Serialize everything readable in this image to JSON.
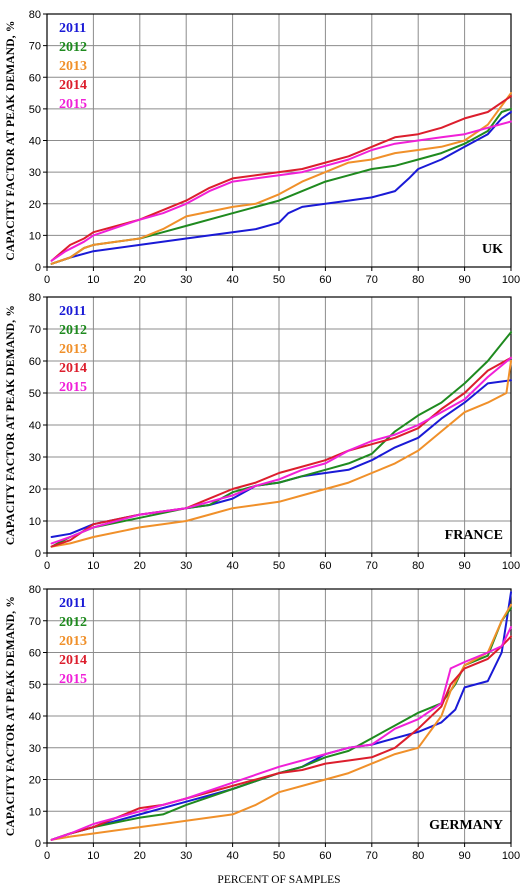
{
  "colors": {
    "2011": "#1a1ad6",
    "2012": "#1f8a1f",
    "2013": "#f0902a",
    "2014": "#dc1e2d",
    "2015": "#f020d8",
    "grid": "#8c8c8c",
    "axis": "#000000"
  },
  "ylabel": "CAPACITY FACTOR AT PEAK DEMAND, %",
  "xlabel": "PERCENT OF SAMPLES",
  "chart_data": [
    {
      "type": "line",
      "country": "UK",
      "xlim": [
        0,
        100
      ],
      "ylim": [
        0,
        80
      ],
      "xticks": [
        0,
        10,
        20,
        30,
        40,
        50,
        60,
        70,
        80,
        90,
        100
      ],
      "yticks": [
        0,
        10,
        20,
        30,
        40,
        50,
        60,
        70,
        80
      ],
      "grid": true,
      "legend_position": "top-left",
      "series": [
        {
          "name": "2011",
          "color_key": "2011",
          "x": [
            1,
            5,
            10,
            20,
            30,
            40,
            45,
            50,
            52,
            55,
            60,
            65,
            70,
            75,
            78,
            80,
            85,
            90,
            95,
            98,
            100
          ],
          "y": [
            1,
            3,
            5,
            7,
            9,
            11,
            12,
            14,
            17,
            19,
            20,
            21,
            22,
            24,
            28,
            31,
            34,
            38,
            42,
            47,
            49
          ]
        },
        {
          "name": "2012",
          "color_key": "2012",
          "x": [
            1,
            5,
            8,
            10,
            20,
            25,
            30,
            40,
            45,
            50,
            55,
            60,
            65,
            70,
            75,
            80,
            85,
            90,
            95,
            98,
            100
          ],
          "y": [
            1,
            3,
            6,
            7,
            9,
            11,
            13,
            17,
            19,
            21,
            24,
            27,
            29,
            31,
            32,
            34,
            36,
            39,
            43,
            49,
            50
          ]
        },
        {
          "name": "2013",
          "color_key": "2013",
          "x": [
            1,
            5,
            8,
            10,
            20,
            25,
            30,
            40,
            45,
            50,
            55,
            60,
            65,
            70,
            75,
            80,
            85,
            90,
            95,
            100
          ],
          "y": [
            1,
            3,
            6,
            7,
            9,
            12,
            16,
            19,
            20,
            23,
            27,
            30,
            33,
            34,
            36,
            37,
            38,
            40,
            45,
            55
          ]
        },
        {
          "name": "2014",
          "color_key": "2014",
          "x": [
            1,
            5,
            8,
            10,
            20,
            25,
            30,
            35,
            40,
            45,
            50,
            55,
            60,
            65,
            70,
            75,
            80,
            85,
            90,
            95,
            100
          ],
          "y": [
            2,
            7,
            9,
            11,
            15,
            18,
            21,
            25,
            28,
            29,
            30,
            31,
            33,
            35,
            38,
            41,
            42,
            44,
            47,
            49,
            54
          ]
        },
        {
          "name": "2015",
          "color_key": "2015",
          "x": [
            1,
            4,
            8,
            10,
            20,
            25,
            30,
            35,
            40,
            45,
            50,
            55,
            60,
            65,
            70,
            75,
            80,
            85,
            90,
            95,
            100
          ],
          "y": [
            2,
            5,
            8,
            10,
            15,
            17,
            20,
            24,
            27,
            28,
            29,
            30,
            32,
            34,
            37,
            39,
            40,
            41,
            42,
            44,
            46
          ]
        }
      ]
    },
    {
      "type": "line",
      "country": "FRANCE",
      "xlim": [
        0,
        100
      ],
      "ylim": [
        0,
        80
      ],
      "xticks": [
        0,
        10,
        20,
        30,
        40,
        50,
        60,
        70,
        80,
        90,
        100
      ],
      "yticks": [
        0,
        10,
        20,
        30,
        40,
        50,
        60,
        70,
        80
      ],
      "grid": true,
      "legend_position": "top-left",
      "series": [
        {
          "name": "2011",
          "color_key": "2011",
          "x": [
            1,
            5,
            10,
            20,
            30,
            35,
            40,
            45,
            50,
            55,
            60,
            65,
            70,
            75,
            80,
            85,
            90,
            95,
            100
          ],
          "y": [
            5,
            6,
            9,
            12,
            14,
            15,
            17,
            21,
            22,
            24,
            25,
            26,
            29,
            33,
            36,
            42,
            47,
            53,
            54
          ]
        },
        {
          "name": "2012",
          "color_key": "2012",
          "x": [
            1,
            5,
            10,
            20,
            30,
            35,
            40,
            45,
            50,
            55,
            60,
            65,
            70,
            75,
            80,
            85,
            90,
            95,
            100
          ],
          "y": [
            2,
            5,
            8,
            11,
            14,
            15,
            19,
            21,
            22,
            24,
            26,
            28,
            31,
            38,
            43,
            47,
            53,
            60,
            69
          ]
        },
        {
          "name": "2013",
          "color_key": "2013",
          "x": [
            1,
            5,
            10,
            20,
            30,
            35,
            40,
            45,
            50,
            55,
            60,
            65,
            70,
            75,
            80,
            85,
            90,
            95,
            99,
            100
          ],
          "y": [
            2,
            3,
            5,
            8,
            10,
            12,
            14,
            15,
            16,
            18,
            20,
            22,
            25,
            28,
            32,
            38,
            44,
            47,
            50,
            60
          ]
        },
        {
          "name": "2014",
          "color_key": "2014",
          "x": [
            1,
            5,
            10,
            20,
            30,
            35,
            40,
            45,
            50,
            55,
            60,
            65,
            70,
            75,
            80,
            85,
            90,
            95,
            100
          ],
          "y": [
            2,
            4,
            9,
            12,
            14,
            17,
            20,
            22,
            25,
            27,
            29,
            32,
            34,
            36,
            39,
            45,
            50,
            57,
            61
          ]
        },
        {
          "name": "2015",
          "color_key": "2015",
          "x": [
            1,
            5,
            10,
            20,
            30,
            35,
            40,
            45,
            50,
            55,
            60,
            65,
            70,
            75,
            80,
            85,
            90,
            95,
            100
          ],
          "y": [
            3,
            5,
            8,
            12,
            14,
            16,
            18,
            21,
            23,
            26,
            28,
            32,
            35,
            37,
            40,
            44,
            48,
            55,
            61
          ]
        }
      ]
    },
    {
      "type": "line",
      "country": "GERMANY",
      "xlim": [
        0,
        100
      ],
      "ylim": [
        0,
        80
      ],
      "xticks": [
        0,
        10,
        20,
        30,
        40,
        50,
        60,
        70,
        80,
        90,
        100
      ],
      "yticks": [
        0,
        10,
        20,
        30,
        40,
        50,
        60,
        70,
        80
      ],
      "grid": true,
      "legend_position": "top-left",
      "series": [
        {
          "name": "2011",
          "color_key": "2011",
          "x": [
            1,
            5,
            10,
            20,
            30,
            40,
            50,
            55,
            60,
            65,
            70,
            75,
            80,
            85,
            88,
            90,
            95,
            98,
            100
          ],
          "y": [
            1,
            3,
            5,
            9,
            13,
            17,
            22,
            24,
            28,
            30,
            31,
            33,
            35,
            38,
            42,
            49,
            51,
            60,
            79
          ]
        },
        {
          "name": "2012",
          "color_key": "2012",
          "x": [
            1,
            5,
            10,
            20,
            25,
            30,
            40,
            50,
            55,
            60,
            65,
            70,
            75,
            80,
            85,
            88,
            90,
            95,
            98,
            100
          ],
          "y": [
            1,
            3,
            5,
            8,
            9,
            12,
            17,
            22,
            24,
            27,
            29,
            33,
            37,
            41,
            44,
            50,
            56,
            59,
            70,
            74
          ]
        },
        {
          "name": "2013",
          "color_key": "2013",
          "x": [
            1,
            5,
            10,
            20,
            25,
            30,
            40,
            45,
            50,
            55,
            60,
            65,
            70,
            75,
            80,
            85,
            87,
            90,
            95,
            98,
            100
          ],
          "y": [
            1,
            2,
            3,
            5,
            6,
            7,
            9,
            12,
            16,
            18,
            20,
            22,
            25,
            28,
            30,
            40,
            48,
            56,
            60,
            70,
            75
          ]
        },
        {
          "name": "2014",
          "color_key": "2014",
          "x": [
            1,
            5,
            10,
            20,
            25,
            30,
            40,
            50,
            55,
            60,
            65,
            70,
            75,
            80,
            85,
            87,
            90,
            95,
            98,
            100
          ],
          "y": [
            1,
            3,
            5,
            11,
            12,
            14,
            18,
            22,
            23,
            25,
            26,
            27,
            30,
            36,
            43,
            50,
            55,
            58,
            62,
            65
          ]
        },
        {
          "name": "2015",
          "color_key": "2015",
          "x": [
            1,
            5,
            10,
            20,
            25,
            30,
            40,
            50,
            55,
            60,
            65,
            70,
            75,
            80,
            85,
            87,
            90,
            95,
            98,
            100
          ],
          "y": [
            1,
            3,
            6,
            10,
            12,
            14,
            19,
            24,
            26,
            28,
            30,
            31,
            36,
            39,
            44,
            55,
            57,
            60,
            62,
            68
          ]
        }
      ]
    }
  ]
}
